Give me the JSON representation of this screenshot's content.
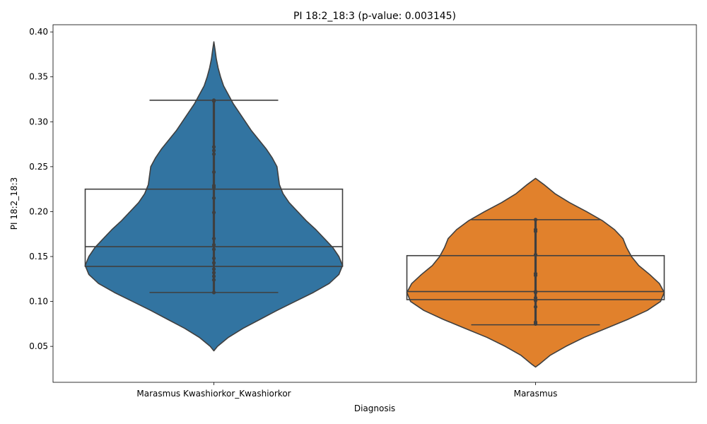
{
  "chart_data": {
    "type": "violin",
    "title": "PI 18:2_18:3 (p-value: 0.003145)",
    "xlabel": "Diagnosis",
    "ylabel": "PI 18:2_18:3",
    "ylim": [
      0.01,
      0.408
    ],
    "yticks": [
      0.05,
      0.1,
      0.15,
      0.2,
      0.25,
      0.3,
      0.35,
      0.4
    ],
    "grid": false,
    "categories": [
      "Marasmus Kwashiorkor_Kwashiorkor",
      "Marasmus"
    ],
    "groups": [
      {
        "category": "Marasmus Kwashiorkor_Kwashiorkor",
        "color": "#3274a1",
        "violin_range": [
          0.045,
          0.389
        ],
        "q1": 0.139,
        "median": 0.161,
        "q3": 0.225,
        "whisker_low": 0.11,
        "whisker_high": 0.324,
        "points": [
          0.324,
          0.323,
          0.272,
          0.268,
          0.264,
          0.244,
          0.229,
          0.227,
          0.215,
          0.199,
          0.17,
          0.163,
          0.158,
          0.148,
          0.143,
          0.136,
          0.132,
          0.128,
          0.124,
          0.11
        ],
        "density": [
          [
            0.045,
            0.0
          ],
          [
            0.05,
            0.03
          ],
          [
            0.06,
            0.12
          ],
          [
            0.07,
            0.24
          ],
          [
            0.08,
            0.38
          ],
          [
            0.09,
            0.52
          ],
          [
            0.1,
            0.67
          ],
          [
            0.11,
            0.82
          ],
          [
            0.12,
            0.95
          ],
          [
            0.13,
            1.03
          ],
          [
            0.14,
            1.06
          ],
          [
            0.15,
            1.03
          ],
          [
            0.16,
            0.98
          ],
          [
            0.17,
            0.91
          ],
          [
            0.18,
            0.84
          ],
          [
            0.19,
            0.76
          ],
          [
            0.2,
            0.69
          ],
          [
            0.21,
            0.62
          ],
          [
            0.22,
            0.57
          ],
          [
            0.23,
            0.54
          ],
          [
            0.24,
            0.53
          ],
          [
            0.25,
            0.52
          ],
          [
            0.26,
            0.48
          ],
          [
            0.27,
            0.43
          ],
          [
            0.28,
            0.37
          ],
          [
            0.29,
            0.31
          ],
          [
            0.3,
            0.26
          ],
          [
            0.31,
            0.21
          ],
          [
            0.32,
            0.16
          ],
          [
            0.33,
            0.12
          ],
          [
            0.34,
            0.08
          ],
          [
            0.35,
            0.055
          ],
          [
            0.36,
            0.035
          ],
          [
            0.37,
            0.02
          ],
          [
            0.38,
            0.01
          ],
          [
            0.389,
            0.0
          ]
        ]
      },
      {
        "category": "Marasmus",
        "color": "#e1812c",
        "violin_range": [
          0.027,
          0.237
        ],
        "q1": 0.102,
        "median": 0.111,
        "q3": 0.151,
        "whisker_low": 0.074,
        "whisker_high": 0.191,
        "points": [
          0.191,
          0.18,
          0.178,
          0.152,
          0.131,
          0.129,
          0.111,
          0.11,
          0.104,
          0.101,
          0.094,
          0.077,
          0.075
        ],
        "density": [
          [
            0.027,
            0.0
          ],
          [
            0.03,
            0.03
          ],
          [
            0.04,
            0.12
          ],
          [
            0.05,
            0.25
          ],
          [
            0.06,
            0.4
          ],
          [
            0.07,
            0.58
          ],
          [
            0.08,
            0.76
          ],
          [
            0.09,
            0.92
          ],
          [
            0.1,
            1.03
          ],
          [
            0.11,
            1.06
          ],
          [
            0.12,
            1.02
          ],
          [
            0.13,
            0.94
          ],
          [
            0.14,
            0.85
          ],
          [
            0.15,
            0.79
          ],
          [
            0.16,
            0.75
          ],
          [
            0.17,
            0.72
          ],
          [
            0.18,
            0.65
          ],
          [
            0.19,
            0.55
          ],
          [
            0.2,
            0.42
          ],
          [
            0.21,
            0.28
          ],
          [
            0.22,
            0.16
          ],
          [
            0.23,
            0.07
          ],
          [
            0.237,
            0.0
          ]
        ]
      }
    ]
  }
}
